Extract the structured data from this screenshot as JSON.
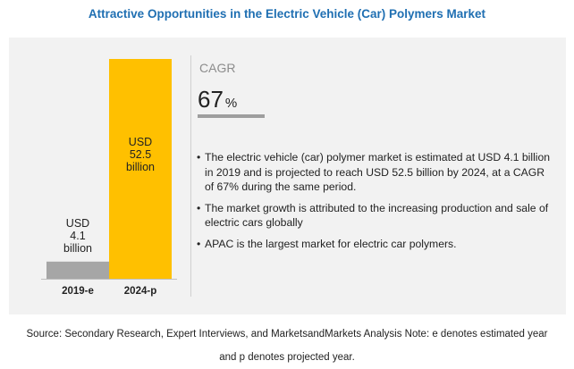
{
  "title": "Attractive Opportunities in the Electric Vehicle (Car) Polymers Market",
  "chart_data": {
    "type": "bar",
    "title": "Attractive Opportunities in the Electric Vehicle (Car) Polymers Market",
    "categories": [
      "2019-e",
      "2024-p"
    ],
    "values": [
      4.1,
      52.5
    ],
    "data_labels": [
      "USD\n4.1\nbillion",
      "USD\n52.5\nbillion"
    ],
    "bar_colors": [
      "#a6a6a6",
      "#ffc000"
    ],
    "xlabel": "",
    "ylabel": "",
    "ylim": [
      0,
      60
    ],
    "grid": false
  },
  "cagr": {
    "label": "CAGR",
    "value": "67",
    "unit": "%"
  },
  "bullets": [
    "The electric vehicle (car) polymer market is estimated at USD 4.1 billion in 2019 and is projected to reach USD 52.5 billion by 2024, at a CAGR of 67% during the same period.",
    "The market growth is attributed to the increasing production and sale of electric cars globally",
    "APAC is the largest market for electric car polymers."
  ],
  "source": {
    "line1": "Source: Secondary Research, Expert Interviews, and MarketsandMarkets Analysis Note: e denotes estimated year",
    "line2": "and p denotes projected year."
  }
}
